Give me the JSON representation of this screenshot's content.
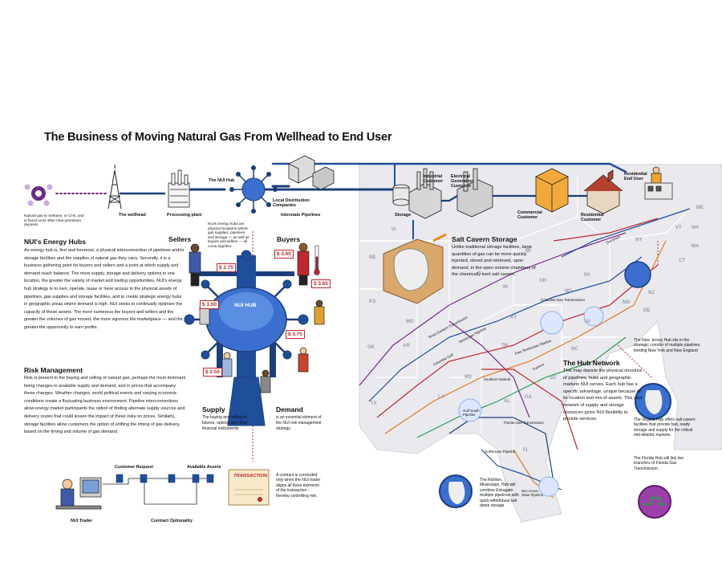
{
  "title": "The Business of Moving Natural Gas From Wellhead to End User",
  "flow": {
    "gas_caption": "Natural gas is methane, or CH4, and is found most often near petroleum deposits",
    "wellhead": "The wellhead",
    "processing": "Processing plant",
    "hub": "The NUI Hub",
    "ldc": "Local Distribution Companies",
    "interstate": "Interstate Pipelines",
    "storage": "Storage",
    "industrial": "Industrial Customer",
    "electrical": "Electrical Generation Customer",
    "commercial": "Commercial Customer",
    "residential": "Residential Customer",
    "residential_end": "Residential End User"
  },
  "energy_hubs": {
    "heading": "NUI's Energy Hubs",
    "body": "An energy hub is, first and foremost, a physical interconnection of pipelines and/or storage facilities and the supplies of natural gas they carry. Secondly, it is a business gathering point for buyers and sellers and a point at which supply and demand reach balance. The more supply, storage and delivery options in one location, the greater the variety of market and trading opportunities. NUI's energy hub strategy is to own, operate, lease or have access to the physical assets of pipelines, gas supplies and storage facilities, and to create strategic energy hubs in geographic areas where demand is high. NUI seeks to continually optimize the capacity of these assets. The more numerous the buyers and sellers and the greater the volumes of gas moved, the more vigorous the marketplace — and the greater the opportunity to earn profits."
  },
  "risk": {
    "heading": "Risk Management",
    "body": "Risk is present in the buying and selling of natural gas, perhaps the most dominant being changes in available supply and demand, and in prices that accompany these changes. Weather changes, world political events and varying economic conditions create a fluctuating business environment. Pipeline interconnections allow energy market participants the option of finding alternate supply sources and delivery routes that could lessen the impact of these risks on prices. Similarly, storage facilities allow customers the option of shifting the timing of gas delivery, based on the timing and volume of gas demand."
  },
  "hub_scene": {
    "sellers": "Sellers",
    "buyers": "Buyers",
    "hub_note": "NUI's energy hubs are physical locations where gas supplies, pipelines and storage — as well as buyers and sellers — all come together.",
    "hub_label": "NUI HUB",
    "supply": "Supply",
    "supply_desc": "The buying and selling of futures, options and other financial instruments",
    "demand": "Demand",
    "demand_desc": "is an essential element of the NUI risk management strategy.",
    "prices": [
      "$ 2.75",
      "$ 3.00",
      "$ 2.50",
      "$ 3.60",
      "$ 3.65",
      "$ 3.75"
    ]
  },
  "trader": {
    "customer_request": "Customer Request",
    "available_assets": "Available Assets",
    "nui_trader": "NUI Trader",
    "contract_optionality": "Contract Optionality",
    "transaction": "TRANSACTION",
    "contract_note": "A contract is concluded only when the NUI trader aligns all three elements of the transaction - thereby controlling risk."
  },
  "salt": {
    "heading": "Salt Cavern Storage",
    "body": "Unlike traditional storage facilities, large quantities of gas can be more quickly injected, stored and retrieved, upon demand, in the open volume chambers of the chemically inert salt cavern."
  },
  "hub_network": {
    "heading": "The Hub Network",
    "body": "This map depicts the physical structure of pipelines, hubs and geographic markets NUI serves. Each hub has a specific advantage, unique because of its location and mix of assets. This vast network of supply and storage resources gives NUI flexibility to provide services."
  },
  "notes": {
    "nj": "The New Jersey Hub sits in the strategic corridor of multiple pipelines feeding New York and New England",
    "va": "The Virginia Hub offers salt cavern facilities that provide fast, ready storage and supply for the critical mid-Atlantic markets.",
    "fl": "The Florida Hub will link two branches of Florida Gas Transmission.",
    "ms": "The Richton, Mississippi, Hub will combine Enkagato multiple pipelines with quick-withdrawal salt dome storage"
  },
  "states": [
    "IA",
    "NE",
    "KS",
    "OK",
    "TX",
    "MO",
    "AR",
    "LA",
    "MS",
    "AL",
    "GA",
    "FL",
    "TN",
    "KY",
    "SC",
    "NC",
    "VA",
    "WV",
    "PA",
    "OH",
    "IN",
    "IL",
    "NY",
    "VT",
    "NH",
    "MA",
    "CT",
    "NJ",
    "MD",
    "DE",
    "MI",
    "CR",
    "ME"
  ],
  "pipelines": {
    "columbia_gas": "Columbia Gas Transmission",
    "texas_eastern": "Texas Eastern Transmission",
    "columbia_gulf": "Columbia Gulf",
    "tennessee": "Tennessee Pipeline",
    "transco": "Transco",
    "southern": "Southern Natural",
    "tn_transmission": "East Tennessee Pipeline",
    "dominion": "Dominion",
    "florida_gas": "Florida Gas Transmission",
    "gulfstream": "Gulfstream Pipeline",
    "gulf_south": "Gulf South Pipeline",
    "nui_city_gate": "NUI Cross-State Pipeline",
    "enkagato": "Enkagato"
  },
  "colors": {
    "pipe_blue": "#1f4e9b",
    "pipe_dark": "#1a3f7a",
    "hub_blue": "#3a6fd0",
    "accent_red": "#c0272d",
    "orange": "#f08c1e",
    "purple": "#7b2a8c"
  }
}
